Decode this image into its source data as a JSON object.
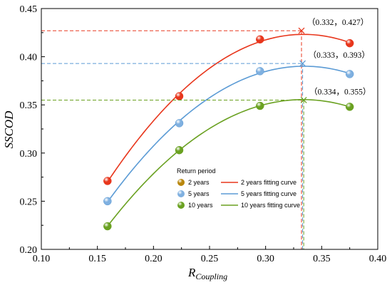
{
  "chart_data": {
    "type": "scatter",
    "xlabel_main": "R",
    "xlabel_sub": "Coupling",
    "ylabel": "SSCOD",
    "xlim": [
      0.1,
      0.4
    ],
    "ylim": [
      0.2,
      0.45
    ],
    "xticks": [
      "0.10",
      "0.15",
      "0.20",
      "0.25",
      "0.30",
      "0.35",
      "0.40"
    ],
    "yticks": [
      "0.20",
      "0.25",
      "0.30",
      "0.35",
      "0.40",
      "0.45"
    ],
    "x": [
      0.159,
      0.223,
      0.295,
      0.375
    ],
    "series": [
      {
        "name": "2 years",
        "fit_name": "2 years fitting curve",
        "values": [
          0.271,
          0.359,
          0.418,
          0.414
        ],
        "color": "#e8361c",
        "dot_color": "#e8361c",
        "peak": {
          "x": 0.332,
          "y": 0.427,
          "label": "（0.332，0.427）"
        }
      },
      {
        "name": "5 years",
        "fit_name": "5 years fitting curve",
        "values": [
          0.25,
          0.331,
          0.385,
          0.382
        ],
        "color": "#5b9bd5",
        "dot_color": "#7fb0e0",
        "peak": {
          "x": 0.333,
          "y": 0.393,
          "label": "（0.333，0.393）"
        }
      },
      {
        "name": "10 years",
        "fit_name": "10 years fitting curve",
        "values": [
          0.224,
          0.303,
          0.349,
          0.348
        ],
        "color": "#6aa121",
        "dot_color": "#6aa121",
        "peak": {
          "x": 0.334,
          "y": 0.355,
          "label": "（0.334，0.355）"
        }
      }
    ],
    "legend": {
      "title": "Return period",
      "placement": "bottom-center",
      "first_dot_color": "#b8860b"
    },
    "grid": false
  }
}
